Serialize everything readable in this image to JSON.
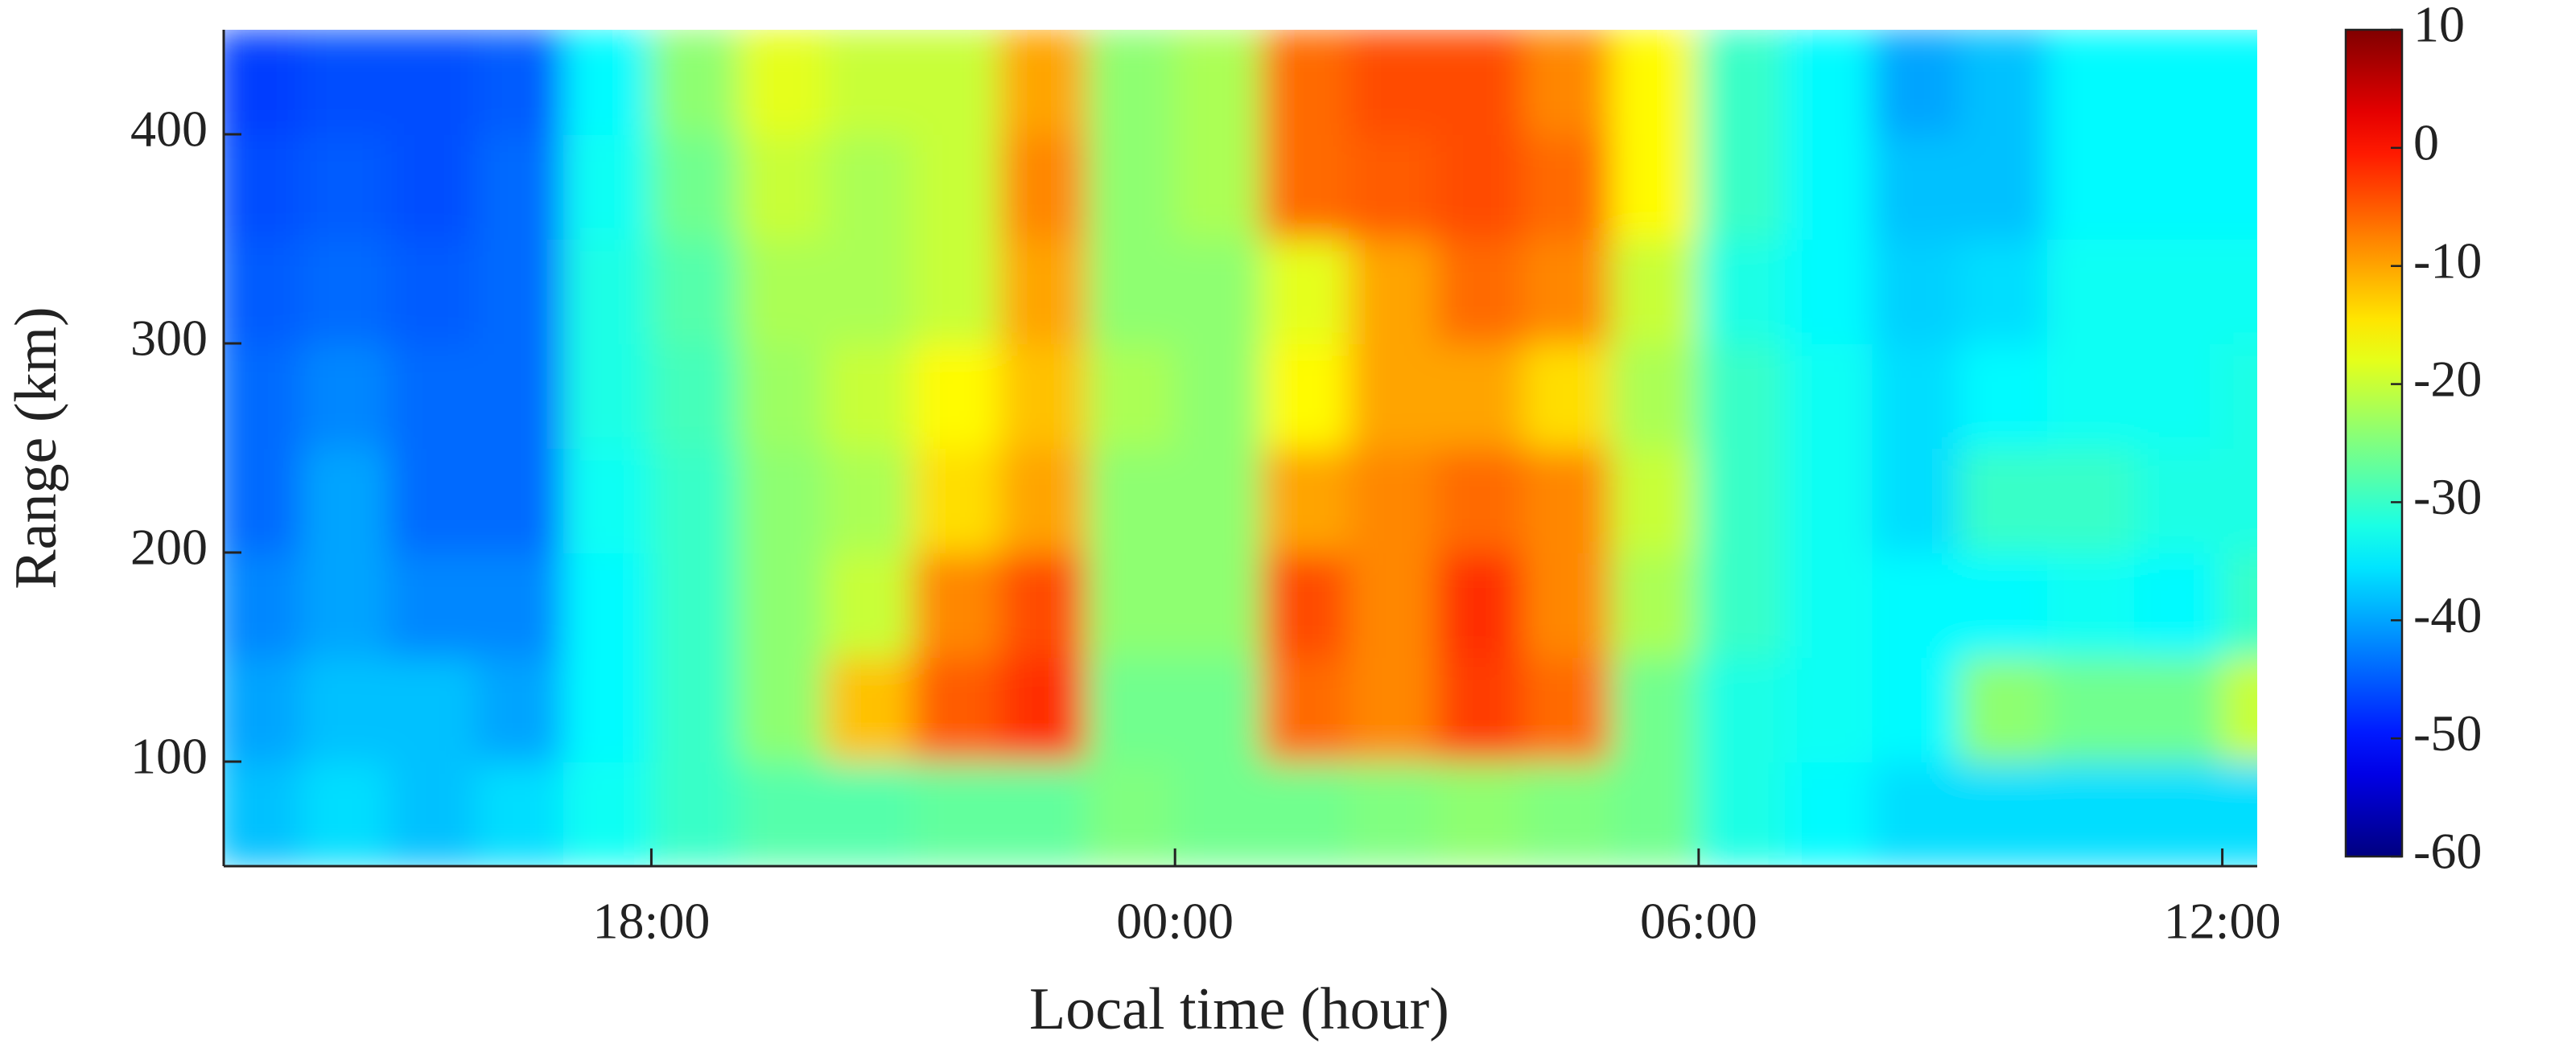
{
  "chart_data": {
    "type": "heatmap",
    "xlabel": "Local time (hour)",
    "ylabel": "Range (km)",
    "x": [
      13.5,
      14.5,
      15.5,
      16.5,
      17.5,
      18.5,
      19.5,
      20.5,
      21.5,
      22.5,
      23.5,
      24.5,
      25.5,
      26.5,
      27.5,
      28.5,
      29.5,
      30.5,
      31.5,
      32.5,
      33.5,
      34.5,
      35.5,
      36.5
    ],
    "y": [
      75,
      125,
      175,
      225,
      275,
      325,
      375,
      425
    ],
    "z": [
      [
        -38,
        -36,
        -38,
        -36,
        -33,
        -30,
        -28,
        -28,
        -27,
        -27,
        -25,
        -26,
        -26,
        -25,
        -24,
        -25,
        -26,
        -32,
        -34,
        -36,
        -36,
        -36,
        -36,
        -36
      ],
      [
        -40,
        -38,
        -38,
        -40,
        -34,
        -30,
        -24,
        -12,
        -5,
        -2,
        -26,
        -26,
        -6,
        -8,
        -3,
        -6,
        -26,
        -32,
        -33,
        -34,
        -24,
        -26,
        -26,
        -20
      ],
      [
        -42,
        -40,
        -42,
        -42,
        -34,
        -30,
        -24,
        -20,
        -8,
        -4,
        -24,
        -24,
        -4,
        -8,
        -2,
        -8,
        -22,
        -30,
        -33,
        -34,
        -34,
        -33,
        -34,
        -30
      ],
      [
        -44,
        -40,
        -44,
        -44,
        -33,
        -30,
        -24,
        -22,
        -14,
        -10,
        -24,
        -24,
        -10,
        -8,
        -6,
        -8,
        -20,
        -30,
        -33,
        -36,
        -30,
        -30,
        -32,
        -32
      ],
      [
        -44,
        -42,
        -44,
        -44,
        -32,
        -29,
        -23,
        -20,
        -16,
        -12,
        -22,
        -24,
        -16,
        -10,
        -10,
        -14,
        -22,
        -30,
        -33,
        -36,
        -34,
        -33,
        -33,
        -32
      ],
      [
        -45,
        -44,
        -45,
        -44,
        -32,
        -28,
        -22,
        -22,
        -20,
        -10,
        -24,
        -24,
        -18,
        -10,
        -6,
        -8,
        -20,
        -32,
        -34,
        -37,
        -36,
        -33,
        -33,
        -33
      ],
      [
        -46,
        -45,
        -46,
        -44,
        -33,
        -26,
        -20,
        -22,
        -20,
        -8,
        -24,
        -22,
        -6,
        -5,
        -4,
        -6,
        -16,
        -30,
        -34,
        -38,
        -38,
        -34,
        -34,
        -34
      ],
      [
        -47,
        -46,
        -46,
        -45,
        -34,
        -24,
        -18,
        -20,
        -20,
        -10,
        -24,
        -22,
        -6,
        -4,
        -4,
        -8,
        -16,
        -30,
        -34,
        -40,
        -38,
        -34,
        -34,
        -34
      ]
    ],
    "xlim": [
      13.1,
      36.4
    ],
    "xticks": [
      {
        "value": 18,
        "label": "18:00"
      },
      {
        "value": 24,
        "label": "00:00"
      },
      {
        "value": 30,
        "label": "06:00"
      },
      {
        "value": 36,
        "label": "12:00"
      }
    ],
    "ylim": [
      50,
      450
    ],
    "yticks": [
      100,
      200,
      300,
      400
    ],
    "colormap": "jet",
    "clim": [
      -60,
      10
    ],
    "cticks": [
      -60,
      -50,
      -40,
      -30,
      -20,
      -10,
      0,
      10
    ]
  }
}
